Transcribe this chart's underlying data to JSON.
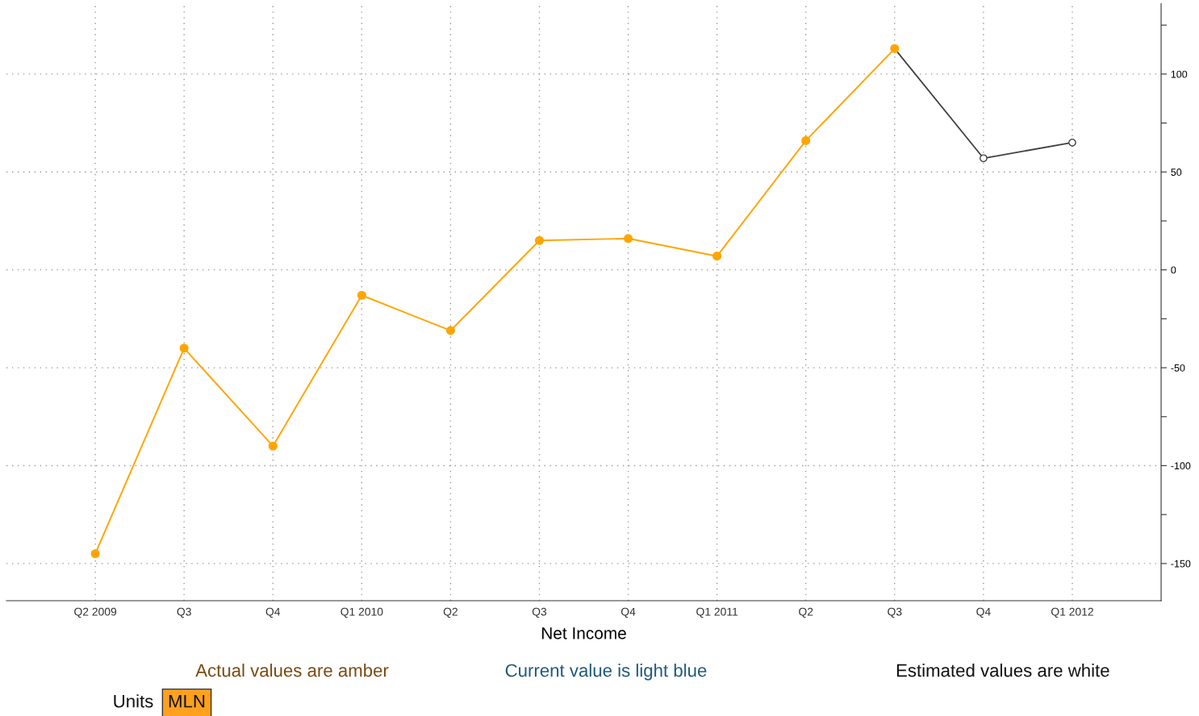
{
  "chart_data": {
    "type": "line",
    "xlabel": "Net Income",
    "categories": [
      "Q2 2009",
      "Q3",
      "Q4",
      "Q1 2010",
      "Q2",
      "Q3",
      "Q4",
      "Q1 2011",
      "Q2",
      "Q3",
      "Q4",
      "Q1 2012"
    ],
    "series": [
      {
        "color": "#ffa500",
        "values": [
          -145,
          -40,
          -90,
          -13,
          -31,
          15,
          16,
          7,
          66,
          113,
          null,
          null
        ]
      },
      {
        "color": "#404040",
        "values": [
          null,
          null,
          null,
          null,
          null,
          null,
          null,
          null,
          null,
          113,
          57,
          65
        ]
      }
    ],
    "ylim": [
      -169,
      136
    ],
    "yticks": [
      {
        "value": -125,
        "label": null
      },
      -150,
      {
        "value": -75,
        "label": null
      },
      -100,
      {
        "value": -25,
        "label": null
      },
      -50,
      {
        "value": 25,
        "label": null
      },
      0,
      {
        "value": 75,
        "label": null
      },
      50,
      {
        "value": 125,
        "label": null
      },
      100
    ],
    "grid": true,
    "marker": "circle",
    "line_style": "solid",
    "annotations": [
      "Actual values are amber",
      "Current value is light blue",
      "Estimated values are white",
      "Units",
      "MLN"
    ]
  }
}
